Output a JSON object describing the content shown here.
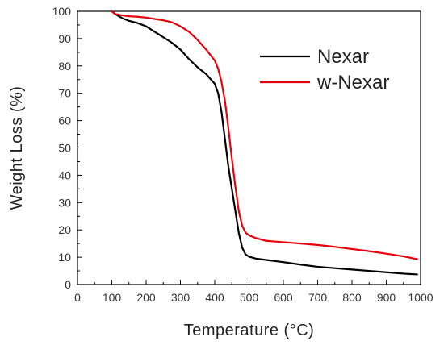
{
  "chart_data": {
    "type": "line",
    "title": "",
    "xlabel": "Temperature (°C)",
    "ylabel": "Weight Loss (%)",
    "xlim": [
      0,
      1000
    ],
    "ylim": [
      0,
      100
    ],
    "xticks": [
      0,
      100,
      200,
      300,
      400,
      500,
      600,
      700,
      800,
      900,
      1000
    ],
    "yticks": [
      0,
      10,
      20,
      30,
      40,
      50,
      60,
      70,
      80,
      90,
      100
    ],
    "grid": false,
    "legend_position": "top-right",
    "series": [
      {
        "name": "Nexar",
        "color": "#000000",
        "x": [
          100,
          110,
          130,
          150,
          175,
          200,
          225,
          250,
          275,
          300,
          325,
          350,
          375,
          400,
          410,
          420,
          430,
          440,
          450,
          460,
          470,
          480,
          490,
          500,
          520,
          550,
          600,
          650,
          700,
          750,
          800,
          850,
          900,
          950,
          990
        ],
        "y": [
          100,
          99,
          97.5,
          96.5,
          95.7,
          94.5,
          92.5,
          90.5,
          88.5,
          86,
          82.5,
          79.5,
          77,
          73.5,
          70,
          63,
          53,
          43,
          35,
          27,
          19,
          13.5,
          11,
          10.2,
          9.5,
          9,
          8.2,
          7.3,
          6.5,
          6,
          5.5,
          5,
          4.5,
          4,
          3.7
        ]
      },
      {
        "name": "w-Nexar",
        "color": "#e8000b",
        "x": [
          100,
          110,
          130,
          150,
          175,
          200,
          225,
          250,
          275,
          300,
          325,
          350,
          375,
          400,
          410,
          420,
          430,
          440,
          450,
          460,
          470,
          480,
          490,
          500,
          520,
          550,
          600,
          650,
          700,
          750,
          800,
          850,
          900,
          950,
          990
        ],
        "y": [
          100,
          99,
          98.5,
          98.2,
          98,
          97.7,
          97.2,
          96.7,
          96,
          94.5,
          92.5,
          89.5,
          86,
          82,
          79,
          74,
          67,
          57,
          46,
          36,
          27,
          21.5,
          19,
          18,
          17,
          16,
          15.5,
          15,
          14.5,
          13.8,
          13,
          12.2,
          11.3,
          10.3,
          9.3
        ]
      }
    ]
  }
}
